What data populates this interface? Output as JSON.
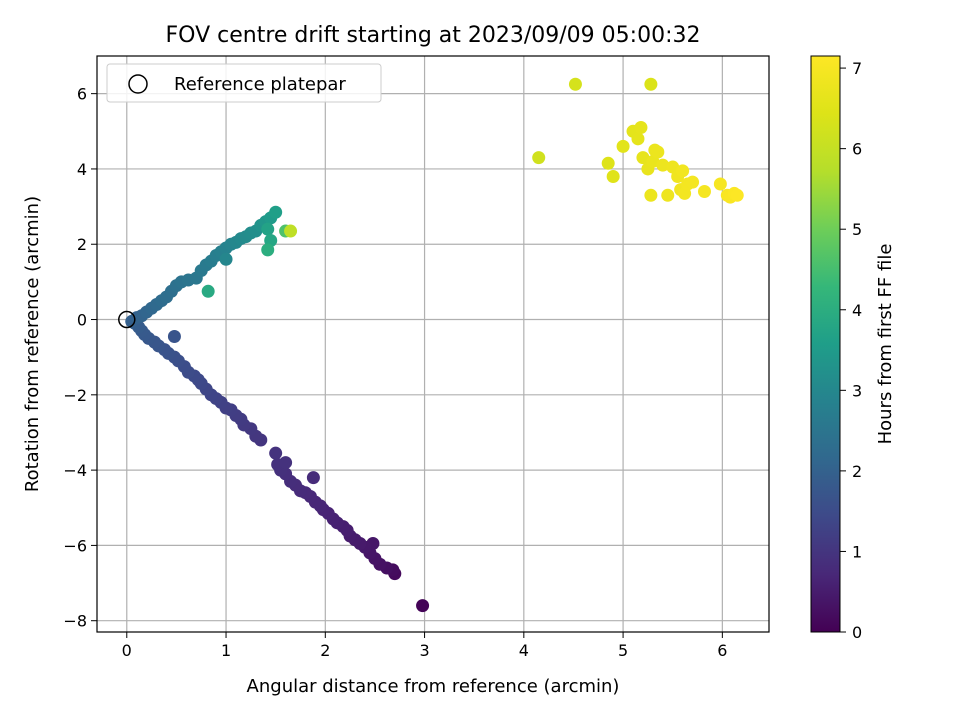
{
  "chart_data": {
    "type": "scatter",
    "title": "FOV centre drift starting at 2023/09/09 05:00:32",
    "xlabel": "Angular distance from reference (arcmin)",
    "ylabel": "Rotation from reference (arcmin)",
    "xlim": [
      -0.3,
      6.47
    ],
    "ylim": [
      -8.3,
      7.0
    ],
    "xticks": [
      0,
      1,
      2,
      3,
      4,
      5,
      6
    ],
    "yticks": [
      -8,
      -6,
      -4,
      -2,
      0,
      2,
      4,
      6
    ],
    "grid": true,
    "legend": {
      "placement": "top-left",
      "entries": [
        {
          "label": "Reference platepar",
          "marker": "open-circle"
        }
      ]
    },
    "colorbar": {
      "label": "Hours from first FF file",
      "colormap": "viridis",
      "range": [
        0,
        7.15
      ],
      "ticks": [
        0,
        1,
        2,
        3,
        4,
        5,
        6,
        7
      ]
    },
    "reference_point": {
      "x": 0,
      "y": 0
    },
    "series": [
      {
        "points": [
          [
            2.98,
            -7.6,
            0.05
          ],
          [
            2.7,
            -6.75,
            0.15
          ],
          [
            2.68,
            -6.65,
            0.2
          ],
          [
            2.62,
            -6.6,
            0.25
          ],
          [
            2.55,
            -6.5,
            0.3
          ],
          [
            2.5,
            -6.35,
            0.33
          ],
          [
            2.45,
            -6.2,
            0.37
          ],
          [
            2.48,
            -5.95,
            0.4
          ],
          [
            2.4,
            -6.05,
            0.42
          ],
          [
            2.35,
            -5.95,
            0.45
          ],
          [
            2.3,
            -5.85,
            0.48
          ],
          [
            2.25,
            -5.75,
            0.5
          ],
          [
            2.22,
            -5.6,
            0.53
          ],
          [
            2.18,
            -5.5,
            0.55
          ],
          [
            2.12,
            -5.4,
            0.58
          ],
          [
            2.08,
            -5.3,
            0.6
          ],
          [
            2.03,
            -5.15,
            0.63
          ],
          [
            1.98,
            -5.05,
            0.65
          ],
          [
            1.95,
            -4.95,
            0.68
          ],
          [
            1.9,
            -4.85,
            0.7
          ],
          [
            1.85,
            -4.7,
            0.72
          ],
          [
            1.8,
            -4.6,
            0.75
          ],
          [
            1.75,
            -4.55,
            0.78
          ],
          [
            1.88,
            -4.2,
            0.8
          ],
          [
            1.7,
            -4.4,
            0.82
          ],
          [
            1.65,
            -4.3,
            0.85
          ],
          [
            1.6,
            -4.1,
            0.87
          ],
          [
            1.55,
            -4.0,
            0.9
          ],
          [
            1.52,
            -3.85,
            0.92
          ],
          [
            1.6,
            -3.8,
            0.94
          ],
          [
            1.5,
            -3.55,
            0.96
          ],
          [
            1.35,
            -3.2,
            1.0
          ],
          [
            1.3,
            -3.1,
            1.03
          ],
          [
            1.25,
            -2.9,
            1.06
          ],
          [
            1.18,
            -2.8,
            1.1
          ],
          [
            1.15,
            -2.65,
            1.13
          ],
          [
            1.1,
            -2.55,
            1.16
          ],
          [
            1.05,
            -2.4,
            1.2
          ],
          [
            1.0,
            -2.35,
            1.23
          ],
          [
            0.95,
            -2.2,
            1.26
          ],
          [
            0.9,
            -2.1,
            1.3
          ],
          [
            0.85,
            -2.0,
            1.33
          ],
          [
            0.8,
            -1.85,
            1.36
          ],
          [
            0.75,
            -1.7,
            1.4
          ],
          [
            0.72,
            -1.6,
            1.43
          ],
          [
            0.68,
            -1.5,
            1.46
          ],
          [
            0.62,
            -1.4,
            1.5
          ],
          [
            0.58,
            -1.25,
            1.53
          ],
          [
            0.52,
            -1.1,
            1.56
          ],
          [
            0.48,
            -1.0,
            1.6
          ],
          [
            0.42,
            -0.9,
            1.63
          ],
          [
            0.38,
            -0.8,
            1.66
          ],
          [
            0.48,
            -0.45,
            1.68
          ],
          [
            0.32,
            -0.7,
            1.7
          ],
          [
            0.28,
            -0.6,
            1.73
          ],
          [
            0.22,
            -0.5,
            1.76
          ],
          [
            0.18,
            -0.4,
            1.8
          ],
          [
            0.15,
            -0.3,
            1.83
          ],
          [
            0.12,
            -0.2,
            1.86
          ],
          [
            0.08,
            -0.1,
            1.9
          ],
          [
            0.05,
            -0.05,
            1.95
          ],
          [
            0.1,
            0.05,
            2.0
          ],
          [
            0.15,
            0.1,
            2.05
          ],
          [
            0.2,
            0.2,
            2.1
          ],
          [
            0.25,
            0.3,
            2.15
          ],
          [
            0.3,
            0.4,
            2.2
          ],
          [
            0.35,
            0.5,
            2.25
          ],
          [
            0.4,
            0.6,
            2.3
          ],
          [
            0.45,
            0.75,
            2.35
          ],
          [
            0.5,
            0.9,
            2.4
          ],
          [
            0.55,
            1.0,
            2.45
          ],
          [
            0.62,
            1.05,
            2.5
          ],
          [
            0.7,
            1.1,
            2.55
          ],
          [
            0.75,
            1.3,
            2.6
          ],
          [
            0.8,
            1.45,
            2.65
          ],
          [
            0.85,
            1.55,
            2.7
          ],
          [
            0.9,
            1.7,
            2.75
          ],
          [
            0.95,
            1.8,
            2.8
          ],
          [
            1.0,
            1.9,
            2.85
          ],
          [
            1.05,
            2.0,
            2.9
          ],
          [
            1.0,
            1.6,
            2.95
          ],
          [
            1.1,
            2.05,
            3.0
          ],
          [
            1.15,
            2.15,
            3.05
          ],
          [
            1.2,
            2.2,
            3.1
          ],
          [
            1.25,
            2.3,
            3.15
          ],
          [
            1.3,
            2.35,
            3.2
          ],
          [
            1.35,
            2.5,
            3.3
          ],
          [
            1.4,
            2.6,
            3.4
          ],
          [
            1.45,
            2.7,
            3.5
          ],
          [
            1.5,
            2.85,
            3.6
          ],
          [
            1.42,
            2.4,
            3.7
          ],
          [
            1.45,
            2.1,
            3.8
          ],
          [
            0.82,
            0.75,
            3.9
          ],
          [
            1.42,
            1.85,
            4.0
          ],
          [
            1.6,
            2.35,
            4.6
          ],
          [
            1.65,
            2.35,
            5.9
          ],
          [
            4.15,
            4.3,
            6.2
          ],
          [
            4.52,
            6.25,
            6.3
          ],
          [
            5.28,
            6.25,
            6.4
          ],
          [
            4.85,
            4.15,
            6.45
          ],
          [
            4.9,
            3.8,
            6.5
          ],
          [
            5.0,
            4.6,
            6.55
          ],
          [
            5.1,
            5.0,
            6.6
          ],
          [
            5.15,
            4.8,
            6.62
          ],
          [
            5.18,
            5.1,
            6.64
          ],
          [
            5.2,
            4.3,
            6.66
          ],
          [
            5.25,
            4.0,
            6.7
          ],
          [
            5.3,
            4.2,
            6.72
          ],
          [
            5.32,
            4.5,
            6.74
          ],
          [
            5.35,
            4.45,
            6.76
          ],
          [
            5.28,
            3.3,
            6.78
          ],
          [
            5.4,
            4.1,
            6.8
          ],
          [
            5.45,
            3.3,
            6.82
          ],
          [
            5.5,
            4.05,
            6.84
          ],
          [
            5.55,
            3.8,
            6.86
          ],
          [
            5.58,
            3.45,
            6.88
          ],
          [
            5.6,
            3.95,
            6.9
          ],
          [
            5.62,
            3.35,
            6.92
          ],
          [
            5.65,
            3.6,
            6.94
          ],
          [
            5.7,
            3.65,
            6.96
          ],
          [
            5.82,
            3.4,
            6.98
          ],
          [
            5.98,
            3.6,
            7.0
          ],
          [
            6.05,
            3.3,
            7.03
          ],
          [
            6.08,
            3.25,
            7.06
          ],
          [
            6.12,
            3.35,
            7.1
          ],
          [
            6.15,
            3.3,
            7.13
          ]
        ]
      }
    ]
  }
}
